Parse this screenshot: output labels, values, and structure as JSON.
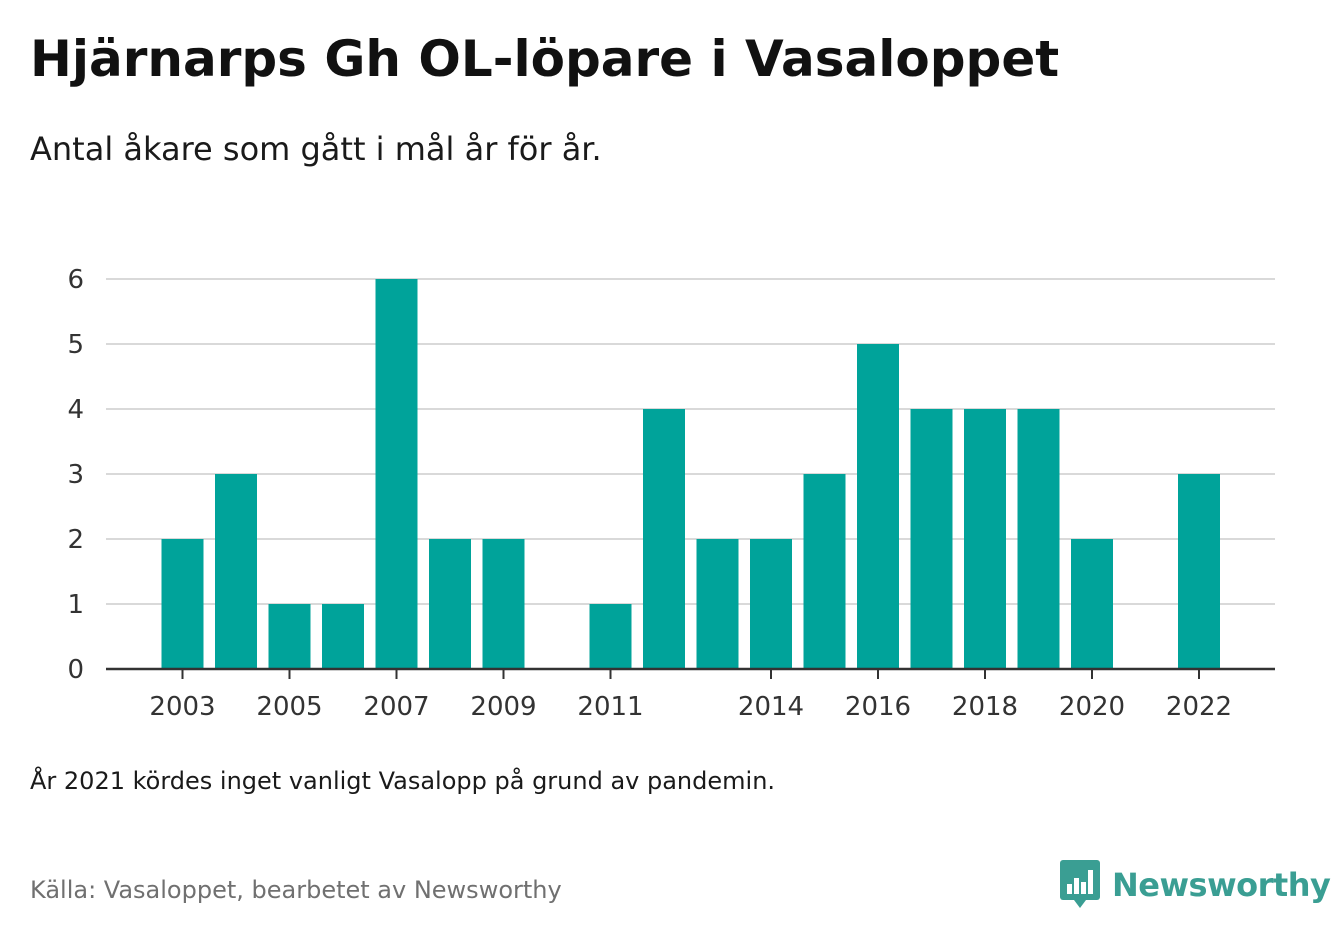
{
  "header": {
    "title": "Hjärnarps Gh OL-löpare i Vasaloppet",
    "subtitle": "Antal åkare som gått i mål år för år."
  },
  "footer": {
    "note": "År 2021 kördes inget vanligt Vasalopp på grund av pandemin.",
    "source": "Källa: Vasaloppet, bearbetet av Newsworthy",
    "brand": "Newsworthy",
    "brand_icon": "newsworthy-logo-icon"
  },
  "colors": {
    "bar": "#00a39a",
    "grid": "#d9d9d9",
    "axis": "#333333",
    "brand": "#3a9e93"
  },
  "chart_data": {
    "type": "bar",
    "categories": [
      "2003",
      "2004",
      "2005",
      "2006",
      "2007",
      "2008",
      "2009",
      "2010",
      "2011",
      "2012",
      "2013",
      "2014",
      "2015",
      "2016",
      "2017",
      "2018",
      "2019",
      "2020",
      "2021",
      "2022"
    ],
    "values": [
      2,
      3,
      1,
      1,
      6,
      2,
      2,
      0,
      1,
      4,
      2,
      2,
      3,
      5,
      4,
      4,
      4,
      2,
      0,
      3
    ],
    "x_tick_labels": [
      "2003",
      "2005",
      "2007",
      "2009",
      "2011",
      "2014",
      "2016",
      "2018",
      "2020",
      "2022"
    ],
    "y_ticks": [
      0,
      1,
      2,
      3,
      4,
      5,
      6
    ],
    "ylim": [
      0,
      6
    ],
    "grid": true,
    "legend": "none"
  }
}
